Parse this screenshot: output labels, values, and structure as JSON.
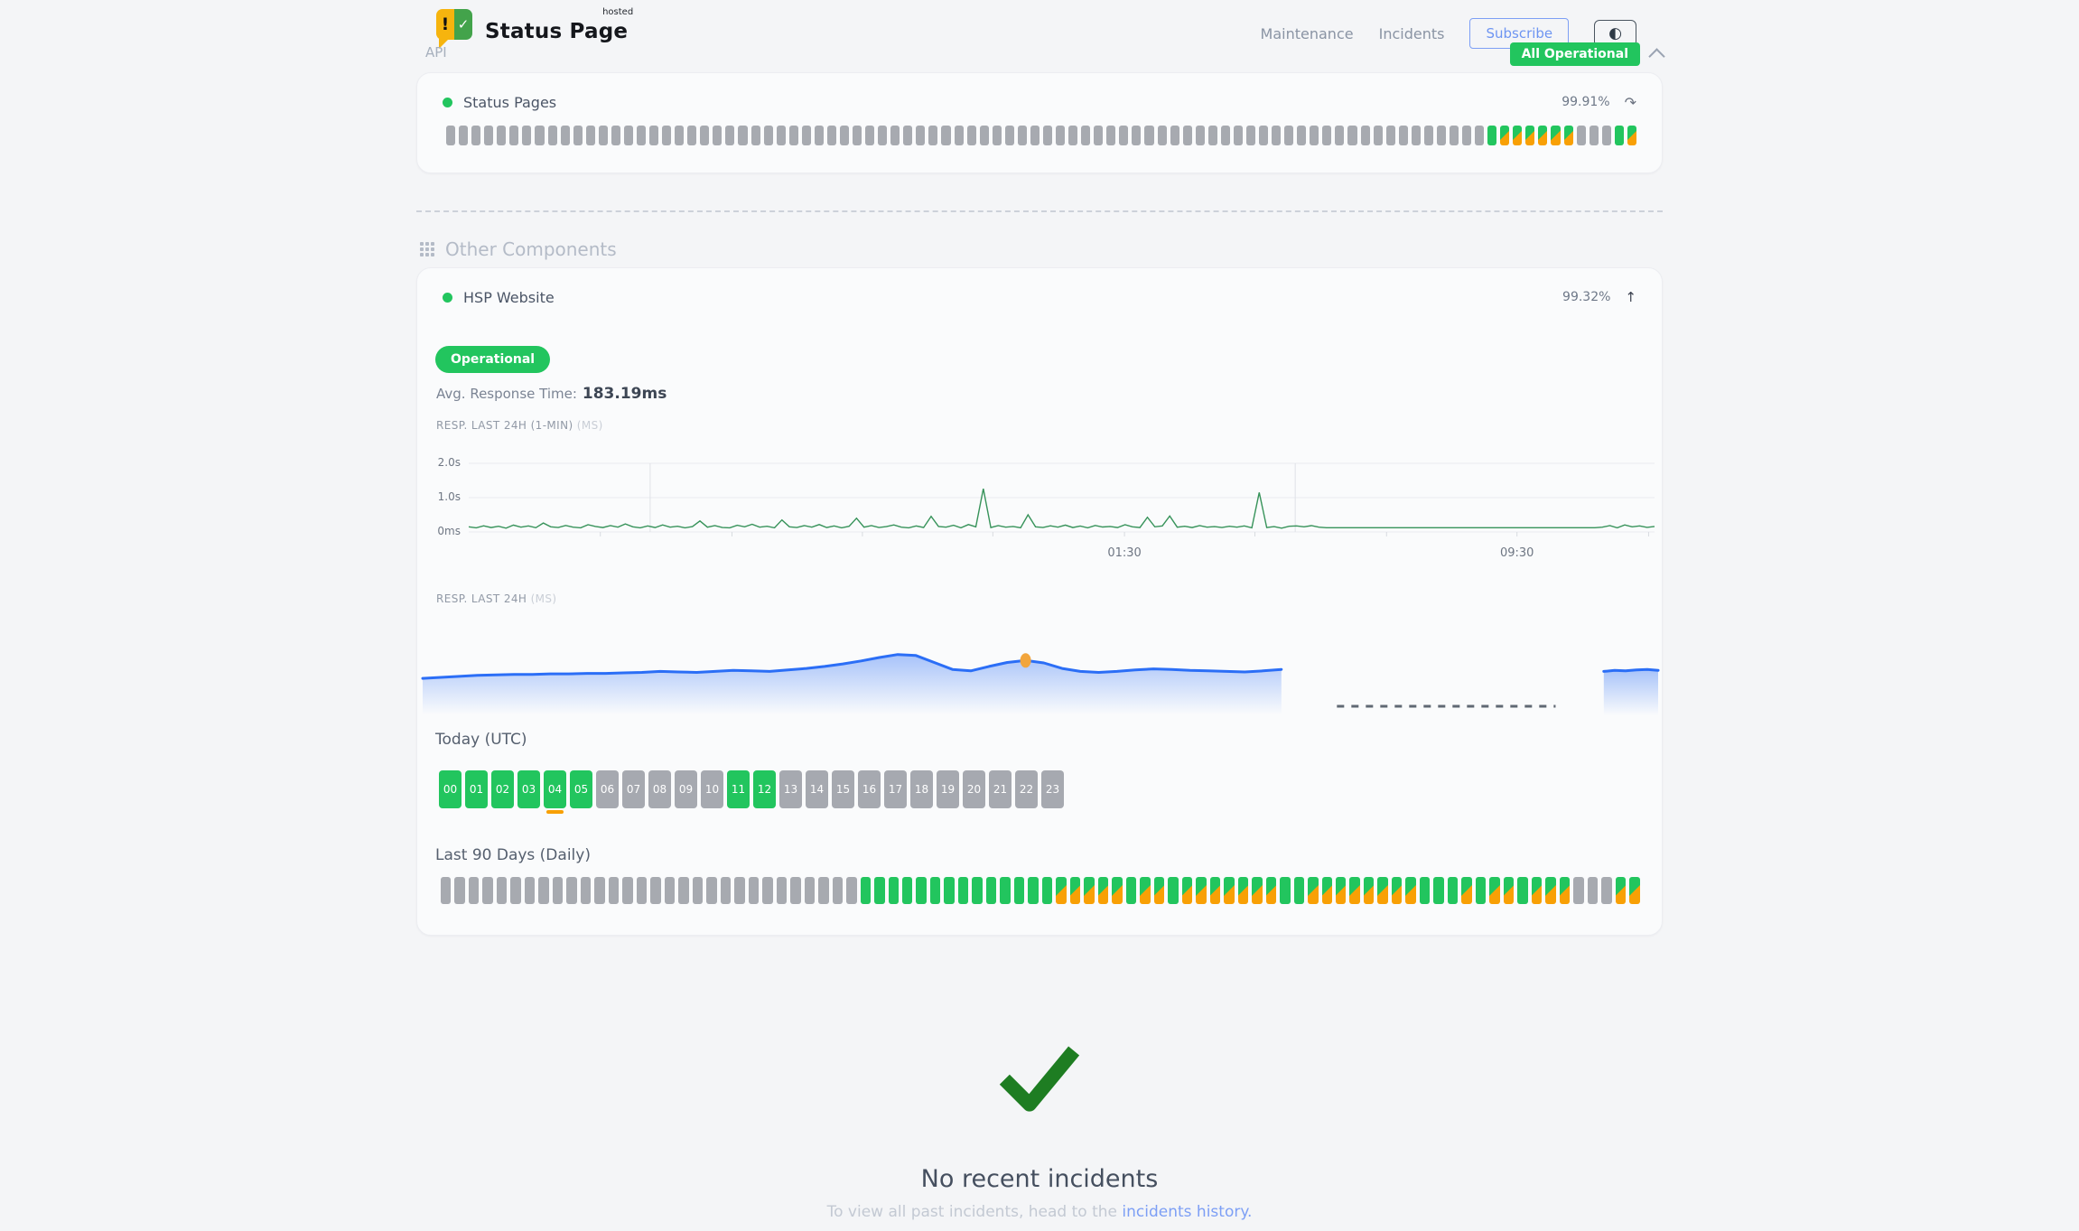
{
  "colors": {
    "green": "#22c55e",
    "orange": "#f8a005",
    "gray_bar": "#a7aab0",
    "blue_line": "#2b6ef6",
    "link_blue": "#7d9ff5",
    "check_green": "#1e7d22",
    "chart1_line": "#37935a"
  },
  "icons": {
    "logo_exclaim": "!",
    "logo_check": "✓",
    "contrast": "◐",
    "history_arrow": "↷",
    "trend_up": "↑"
  },
  "header": {
    "hosted": "hosted",
    "brand": "Status Page",
    "nav_maintenance": "Maintenance",
    "nav_incidents": "Incidents",
    "subscribe": "Subscribe",
    "badge": "All Operational"
  },
  "api_section": {
    "title": "API",
    "component_name": "Status Pages",
    "uptime": "99.91%",
    "bars": "eeeeeeeeeeeeeeeeeeeeeeeeeeeeeeeeeeeeeeeeeeeeeeeeeeeeeeeeeeeeeeeeeeeeeeeeeeeeeeeeeegppppppeeegp"
  },
  "other_section": {
    "title": "Other Components",
    "component_name": "HSP Website",
    "uptime": "99.32%",
    "status_label": "Operational",
    "avg_label": "Avg. Response Time:",
    "avg_value": "183.19ms"
  },
  "chart_data": [
    {
      "type": "line",
      "label": "RESP. LAST 24H (1-MIN)",
      "unit": "(MS)",
      "ylim": [
        0,
        2200
      ],
      "y_ticks": [
        {
          "v": 2000,
          "label": "2.0s"
        },
        {
          "v": 1000,
          "label": "1.0s"
        },
        {
          "v": 0,
          "label": "0ms"
        }
      ],
      "x_ticks": [
        {
          "f": 0.111
        },
        {
          "f": 0.222
        },
        {
          "f": 0.332
        },
        {
          "f": 0.442
        },
        {
          "f": 0.553,
          "label": "01:30"
        },
        {
          "f": 0.663
        },
        {
          "f": 0.774
        },
        {
          "f": 0.884,
          "label": "09:30"
        },
        {
          "f": 0.995
        }
      ],
      "vlines": [
        0.153,
        0.697
      ],
      "values_ms": [
        150,
        120,
        180,
        130,
        165,
        110,
        200,
        140,
        175,
        125,
        260,
        150,
        130,
        190,
        140,
        120,
        210,
        160,
        130,
        185,
        140,
        235,
        150,
        120,
        175,
        130,
        205,
        140,
        165,
        120,
        155,
        320,
        140,
        185,
        130,
        120,
        195,
        150,
        225,
        140,
        165,
        120,
        350,
        150,
        130,
        185,
        140,
        215,
        130,
        175,
        120,
        165,
        400,
        140,
        185,
        130,
        155,
        205,
        140,
        120,
        175,
        130,
        455,
        160,
        140,
        195,
        120,
        215,
        150,
        1260,
        130,
        185,
        140,
        160,
        125,
        500,
        150,
        130,
        180,
        140,
        200,
        130,
        170,
        120,
        190,
        145,
        160,
        130,
        210,
        150,
        130,
        425,
        150,
        175,
        465,
        140,
        165,
        130,
        185,
        140,
        155,
        130,
        165,
        140,
        175,
        120,
        1150,
        130,
        155,
        110,
        165,
        175,
        150,
        185,
        140,
        125,
        125,
        125,
        125,
        125,
        125,
        125,
        125,
        125,
        125,
        125,
        125,
        125,
        125,
        125,
        125,
        125,
        125,
        125,
        125,
        125,
        125,
        125,
        125,
        125,
        125,
        125,
        125,
        125,
        125,
        125,
        125,
        125,
        125,
        125,
        125,
        125,
        140,
        185,
        120,
        205,
        150,
        175,
        135,
        160
      ]
    },
    {
      "type": "area",
      "label": "RESP. LAST 24H",
      "unit": "(MS)",
      "segments": [
        {
          "start_f": 0.0,
          "end_f": 0.695,
          "values_ms": [
            168,
            170,
            172,
            174,
            175,
            176,
            176,
            177,
            177,
            178,
            178,
            179,
            180,
            182,
            181,
            180,
            182,
            184,
            183,
            182,
            185,
            188,
            192,
            197,
            203,
            210,
            216,
            214,
            200,
            186,
            183,
            192,
            200,
            204,
            199,
            188,
            182,
            180,
            182,
            185,
            187,
            186,
            184,
            183,
            182,
            181,
            183,
            186
          ]
        },
        {
          "start_f": 0.956,
          "end_f": 1.0,
          "values_ms": [
            182,
            184,
            183,
            185,
            186,
            184
          ]
        }
      ],
      "marker": {
        "segment": 0,
        "index": 33
      },
      "gap_dash": {
        "from_f": 0.74,
        "to_f": 0.917
      }
    }
  ],
  "today": {
    "title": "Today (UTC)",
    "hours": [
      {
        "h": "00",
        "s": "up"
      },
      {
        "h": "01",
        "s": "up"
      },
      {
        "h": "02",
        "s": "up"
      },
      {
        "h": "03",
        "s": "up"
      },
      {
        "h": "04",
        "s": "up",
        "marker": true
      },
      {
        "h": "05",
        "s": "up"
      },
      {
        "h": "06",
        "s": "e"
      },
      {
        "h": "07",
        "s": "e"
      },
      {
        "h": "08",
        "s": "e"
      },
      {
        "h": "09",
        "s": "e"
      },
      {
        "h": "10",
        "s": "e"
      },
      {
        "h": "11",
        "s": "up"
      },
      {
        "h": "12",
        "s": "up"
      },
      {
        "h": "13",
        "s": "e"
      },
      {
        "h": "14",
        "s": "e"
      },
      {
        "h": "15",
        "s": "e"
      },
      {
        "h": "16",
        "s": "e"
      },
      {
        "h": "17",
        "s": "e"
      },
      {
        "h": "18",
        "s": "e"
      },
      {
        "h": "19",
        "s": "e"
      },
      {
        "h": "20",
        "s": "e"
      },
      {
        "h": "21",
        "s": "e"
      },
      {
        "h": "22",
        "s": "e"
      },
      {
        "h": "23",
        "s": "e"
      }
    ]
  },
  "last90": {
    "title": "Last 90 Days (Daily)",
    "bars": "eeeeeeeeeeeeeeeeeeeeeeeeeeeeeeggggggggggggggpppppgppgpppppppggppppppppgggpgppgpppeeepp"
  },
  "incidents": {
    "title": "No recent incidents",
    "subtitle": "To view all past incidents, head to the ",
    "link": "incidents history."
  }
}
